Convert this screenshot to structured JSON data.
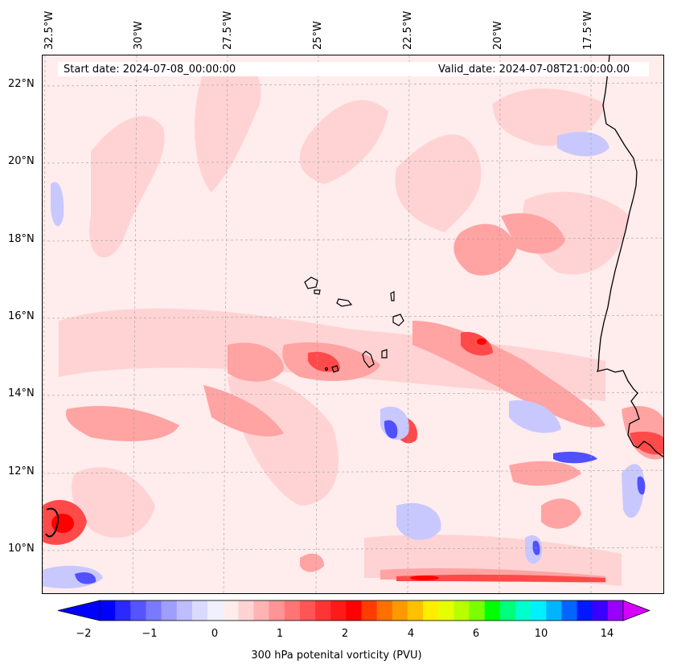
{
  "map": {
    "header": {
      "start_date": "Start date: 2024-07-08_00:00:00",
      "valid_date": "Valid_date: 2024-07-08T21:00:00.00"
    },
    "lon_labels": [
      "32.5°W",
      "30°W",
      "27.5°W",
      "25°W",
      "22.5°W",
      "20°W",
      "17.5°W"
    ],
    "lat_labels": [
      "22°N",
      "20°N",
      "18°N",
      "16°N",
      "14°N",
      "12°N",
      "10°N"
    ],
    "extent": {
      "lon_min": -32.5,
      "lon_max": -15.2,
      "lat_min": 9,
      "lat_max": 22.8
    },
    "features": [
      "Cape Verde islands",
      "West African coastline (Mauritania, Senegal, Gambia, Guinea-Bissau)"
    ]
  },
  "colorbar": {
    "label": "300 hPa potenital vorticity (PVU)",
    "tick_labels": [
      "−2",
      "−1",
      "0",
      "1",
      "2",
      "4",
      "6",
      "10",
      "14"
    ],
    "colors": [
      "#0000ff",
      "#2a2aff",
      "#5555ff",
      "#7a7aff",
      "#9e9eff",
      "#bdbdff",
      "#dadaff",
      "#f0f0ff",
      "#ffeded",
      "#ffd3d3",
      "#ffb3b3",
      "#ff9494",
      "#ff7575",
      "#ff5555",
      "#ff3535",
      "#ff1a1a",
      "#ff0000",
      "#ff3d00",
      "#ff7000",
      "#ff9900",
      "#ffc000",
      "#ffee00",
      "#e6ff00",
      "#b8ff00",
      "#7aff00",
      "#00ff00",
      "#00ff7a",
      "#00ffcc",
      "#00f0ff",
      "#00b4ff",
      "#0066ff",
      "#0018ff",
      "#3a00ff",
      "#9a00ff"
    ],
    "under_color": "#0000ff",
    "over_color": "#d500ff"
  }
}
